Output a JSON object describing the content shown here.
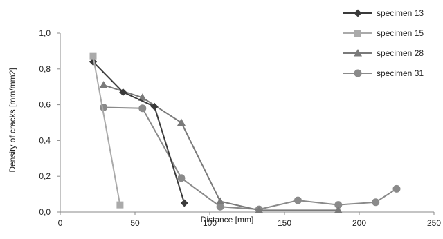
{
  "chart_data": {
    "type": "line",
    "title": "",
    "xlabel": "Distance [mm]",
    "ylabel": "Density of cracks [mm/mm2]",
    "xlim": [
      0,
      250
    ],
    "ylim": [
      0,
      1.0
    ],
    "x_ticks": [
      0,
      50,
      100,
      150,
      200,
      250
    ],
    "x_tick_labels": [
      "0",
      "50",
      "100",
      "150",
      "200",
      "250"
    ],
    "y_ticks": [
      0,
      0.2,
      0.4,
      0.6,
      0.8,
      1.0
    ],
    "y_tick_labels": [
      "0,0",
      "0,2",
      "0,4",
      "0,6",
      "0,8",
      "1,0"
    ],
    "grid": false,
    "legend_position": "top-right",
    "series": [
      {
        "name": "specimen 13",
        "color": "#3a3a3a",
        "marker": "diamond",
        "x": [
          22,
          42,
          63,
          83
        ],
        "y": [
          0.84,
          0.67,
          0.59,
          0.05
        ]
      },
      {
        "name": "specimen 15",
        "color": "#aaaaaa",
        "marker": "square",
        "x": [
          22,
          40
        ],
        "y": [
          0.87,
          0.04
        ]
      },
      {
        "name": "specimen 28",
        "color": "#7a7a7a",
        "marker": "triangle",
        "x": [
          29,
          55,
          81,
          107,
          133,
          186
        ],
        "y": [
          0.71,
          0.64,
          0.5,
          0.06,
          0.01,
          0.01
        ]
      },
      {
        "name": "specimen 31",
        "color": "#8a8a8a",
        "marker": "circle",
        "x": [
          29,
          55,
          81,
          107,
          133,
          159,
          186,
          211,
          225
        ],
        "y": [
          0.585,
          0.58,
          0.19,
          0.03,
          0.015,
          0.065,
          0.04,
          0.055,
          0.13
        ]
      }
    ]
  }
}
